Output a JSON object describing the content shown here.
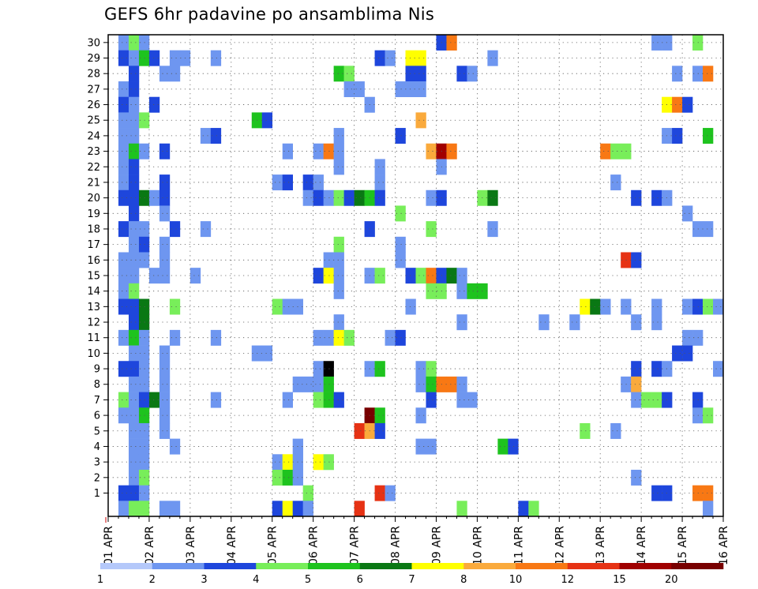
{
  "chart_data": {
    "type": "heatmap",
    "title": "GEFS 6hr padavine po ansamblima Nis",
    "x_tick_labels": [
      "01 APR",
      "02 APR",
      "03 APR",
      "04 APR",
      "05 APR",
      "06 APR",
      "07 APR",
      "08 APR",
      "09 APR",
      "10 APR",
      "11 APR",
      "12 APR",
      "13 APR",
      "14 APR",
      "15 APR",
      "16 APR"
    ],
    "y_tick_labels": [
      "1",
      "2",
      "3",
      "4",
      "5",
      "6",
      "7",
      "8",
      "9",
      "10",
      "11",
      "12",
      "13",
      "14",
      "15",
      "16",
      "17",
      "18",
      "19",
      "20",
      "21",
      "22",
      "23",
      "24",
      "25",
      "26",
      "27",
      "28",
      "29",
      "30"
    ],
    "x_unit": "6-hour step (step 0 = 01 APR 00Z)",
    "y_unit": "ensemble member",
    "xlim": [
      0,
      60
    ],
    "ylim": [
      0,
      30
    ],
    "grid": true,
    "colorbar": {
      "colors": [
        "#b4c8fa",
        "#6e96f0",
        "#1e46dc",
        "#78ee5a",
        "#1ec31e",
        "#0a7814",
        "#ffff00",
        "#faaa3c",
        "#f87814",
        "#e63214",
        "#a00000",
        "#780000"
      ],
      "labels": [
        "1",
        "2",
        "3",
        "4",
        "5",
        "6",
        "7",
        "8",
        "10",
        "12",
        "15",
        "20"
      ]
    },
    "cells": [
      [
        1,
        30,
        1
      ],
      [
        2,
        30,
        3
      ],
      [
        3,
        30,
        1
      ],
      [
        32,
        30,
        2
      ],
      [
        33,
        30,
        8
      ],
      [
        53,
        30,
        1
      ],
      [
        54,
        30,
        1
      ],
      [
        57,
        30,
        3
      ],
      [
        1,
        29,
        2
      ],
      [
        2,
        29,
        1
      ],
      [
        3,
        29,
        4
      ],
      [
        4,
        29,
        2
      ],
      [
        6,
        29,
        1
      ],
      [
        7,
        29,
        1
      ],
      [
        10,
        29,
        1
      ],
      [
        26,
        29,
        2
      ],
      [
        27,
        29,
        1
      ],
      [
        29,
        29,
        6
      ],
      [
        30,
        29,
        6
      ],
      [
        37,
        29,
        1
      ],
      [
        2,
        28,
        2
      ],
      [
        5,
        28,
        1
      ],
      [
        6,
        28,
        1
      ],
      [
        22,
        28,
        4
      ],
      [
        23,
        28,
        3
      ],
      [
        29,
        28,
        2
      ],
      [
        30,
        28,
        2
      ],
      [
        34,
        28,
        2
      ],
      [
        35,
        28,
        1
      ],
      [
        55,
        28,
        1
      ],
      [
        57,
        28,
        1
      ],
      [
        58,
        28,
        8
      ],
      [
        1,
        27,
        1
      ],
      [
        2,
        27,
        2
      ],
      [
        23,
        27,
        1
      ],
      [
        24,
        27,
        1
      ],
      [
        28,
        27,
        1
      ],
      [
        29,
        27,
        1
      ],
      [
        30,
        27,
        1
      ],
      [
        1,
        26,
        2
      ],
      [
        2,
        26,
        1
      ],
      [
        4,
        26,
        2
      ],
      [
        25,
        26,
        1
      ],
      [
        54,
        26,
        6
      ],
      [
        55,
        26,
        8
      ],
      [
        56,
        26,
        2
      ],
      [
        1,
        25,
        1
      ],
      [
        2,
        25,
        1
      ],
      [
        3,
        25,
        3
      ],
      [
        14,
        25,
        4
      ],
      [
        15,
        25,
        2
      ],
      [
        30,
        25,
        7
      ],
      [
        1,
        24,
        1
      ],
      [
        2,
        24,
        1
      ],
      [
        9,
        24,
        1
      ],
      [
        10,
        24,
        2
      ],
      [
        22,
        24,
        1
      ],
      [
        28,
        24,
        2
      ],
      [
        54,
        24,
        1
      ],
      [
        55,
        24,
        2
      ],
      [
        58,
        24,
        4
      ],
      [
        1,
        23,
        1
      ],
      [
        2,
        23,
        4
      ],
      [
        3,
        23,
        1
      ],
      [
        5,
        23,
        2
      ],
      [
        17,
        23,
        1
      ],
      [
        20,
        23,
        1
      ],
      [
        21,
        23,
        8
      ],
      [
        22,
        23,
        1
      ],
      [
        31,
        23,
        7
      ],
      [
        32,
        23,
        10
      ],
      [
        33,
        23,
        8
      ],
      [
        48,
        23,
        8
      ],
      [
        49,
        23,
        3
      ],
      [
        50,
        23,
        3
      ],
      [
        1,
        22,
        1
      ],
      [
        2,
        22,
        2
      ],
      [
        22,
        22,
        1
      ],
      [
        26,
        22,
        1
      ],
      [
        32,
        22,
        1
      ],
      [
        1,
        21,
        1
      ],
      [
        2,
        21,
        2
      ],
      [
        5,
        21,
        2
      ],
      [
        16,
        21,
        1
      ],
      [
        17,
        21,
        2
      ],
      [
        19,
        21,
        2
      ],
      [
        20,
        21,
        1
      ],
      [
        26,
        21,
        1
      ],
      [
        49,
        21,
        1
      ],
      [
        1,
        20,
        2
      ],
      [
        2,
        20,
        2
      ],
      [
        3,
        20,
        5
      ],
      [
        4,
        20,
        1
      ],
      [
        5,
        20,
        2
      ],
      [
        19,
        20,
        1
      ],
      [
        20,
        20,
        2
      ],
      [
        21,
        20,
        1
      ],
      [
        22,
        20,
        3
      ],
      [
        23,
        20,
        2
      ],
      [
        24,
        20,
        5
      ],
      [
        25,
        20,
        4
      ],
      [
        26,
        20,
        2
      ],
      [
        31,
        20,
        1
      ],
      [
        32,
        20,
        2
      ],
      [
        36,
        20,
        3
      ],
      [
        37,
        20,
        5
      ],
      [
        51,
        20,
        2
      ],
      [
        53,
        20,
        2
      ],
      [
        54,
        20,
        1
      ],
      [
        2,
        19,
        2
      ],
      [
        5,
        19,
        1
      ],
      [
        28,
        19,
        3
      ],
      [
        56,
        19,
        1
      ],
      [
        1,
        18,
        2
      ],
      [
        2,
        18,
        1
      ],
      [
        3,
        18,
        1
      ],
      [
        6,
        18,
        2
      ],
      [
        9,
        18,
        1
      ],
      [
        25,
        18,
        2
      ],
      [
        31,
        18,
        3
      ],
      [
        37,
        18,
        1
      ],
      [
        57,
        18,
        1
      ],
      [
        58,
        18,
        1
      ],
      [
        2,
        17,
        1
      ],
      [
        3,
        17,
        2
      ],
      [
        5,
        17,
        1
      ],
      [
        22,
        17,
        3
      ],
      [
        28,
        17,
        1
      ],
      [
        1,
        16,
        1
      ],
      [
        2,
        16,
        1
      ],
      [
        3,
        16,
        1
      ],
      [
        5,
        16,
        1
      ],
      [
        21,
        16,
        1
      ],
      [
        22,
        16,
        1
      ],
      [
        28,
        16,
        1
      ],
      [
        50,
        16,
        9
      ],
      [
        51,
        16,
        2
      ],
      [
        1,
        15,
        1
      ],
      [
        2,
        15,
        1
      ],
      [
        4,
        15,
        1
      ],
      [
        5,
        15,
        1
      ],
      [
        8,
        15,
        1
      ],
      [
        20,
        15,
        2
      ],
      [
        21,
        15,
        6
      ],
      [
        22,
        15,
        1
      ],
      [
        25,
        15,
        1
      ],
      [
        26,
        15,
        3
      ],
      [
        29,
        15,
        2
      ],
      [
        30,
        15,
        3
      ],
      [
        31,
        15,
        8
      ],
      [
        32,
        15,
        2
      ],
      [
        33,
        15,
        5
      ],
      [
        34,
        15,
        1
      ],
      [
        1,
        14,
        1
      ],
      [
        2,
        14,
        3
      ],
      [
        22,
        14,
        1
      ],
      [
        31,
        14,
        3
      ],
      [
        32,
        14,
        3
      ],
      [
        34,
        14,
        1
      ],
      [
        35,
        14,
        4
      ],
      [
        36,
        14,
        4
      ],
      [
        1,
        13,
        2
      ],
      [
        2,
        13,
        2
      ],
      [
        3,
        13,
        5
      ],
      [
        6,
        13,
        3
      ],
      [
        16,
        13,
        3
      ],
      [
        17,
        13,
        1
      ],
      [
        18,
        13,
        1
      ],
      [
        29,
        13,
        1
      ],
      [
        46,
        13,
        6
      ],
      [
        47,
        13,
        5
      ],
      [
        48,
        13,
        1
      ],
      [
        50,
        13,
        1
      ],
      [
        53,
        13,
        1
      ],
      [
        56,
        13,
        1
      ],
      [
        57,
        13,
        2
      ],
      [
        58,
        13,
        3
      ],
      [
        59,
        13,
        1
      ],
      [
        2,
        12,
        2
      ],
      [
        3,
        12,
        5
      ],
      [
        22,
        12,
        1
      ],
      [
        34,
        12,
        1
      ],
      [
        42,
        12,
        1
      ],
      [
        45,
        12,
        1
      ],
      [
        51,
        12,
        1
      ],
      [
        53,
        12,
        1
      ],
      [
        1,
        11,
        1
      ],
      [
        2,
        11,
        4
      ],
      [
        3,
        11,
        1
      ],
      [
        6,
        11,
        1
      ],
      [
        10,
        11,
        1
      ],
      [
        20,
        11,
        1
      ],
      [
        21,
        11,
        1
      ],
      [
        22,
        11,
        6
      ],
      [
        23,
        11,
        3
      ],
      [
        27,
        11,
        1
      ],
      [
        28,
        11,
        2
      ],
      [
        56,
        11,
        1
      ],
      [
        57,
        11,
        1
      ],
      [
        2,
        10,
        1
      ],
      [
        3,
        10,
        1
      ],
      [
        5,
        10,
        1
      ],
      [
        14,
        10,
        1
      ],
      [
        15,
        10,
        1
      ],
      [
        55,
        10,
        2
      ],
      [
        56,
        10,
        2
      ],
      [
        1,
        9,
        2
      ],
      [
        2,
        9,
        2
      ],
      [
        3,
        9,
        1
      ],
      [
        5,
        9,
        1
      ],
      [
        20,
        9,
        1
      ],
      [
        21,
        9,
        12
      ],
      [
        25,
        9,
        1
      ],
      [
        26,
        9,
        4
      ],
      [
        30,
        9,
        1
      ],
      [
        31,
        9,
        3
      ],
      [
        51,
        9,
        2
      ],
      [
        53,
        9,
        2
      ],
      [
        54,
        9,
        1
      ],
      [
        59,
        9,
        1
      ],
      [
        2,
        8,
        1
      ],
      [
        3,
        8,
        1
      ],
      [
        5,
        8,
        1
      ],
      [
        18,
        8,
        1
      ],
      [
        19,
        8,
        1
      ],
      [
        20,
        8,
        1
      ],
      [
        21,
        8,
        4
      ],
      [
        30,
        8,
        1
      ],
      [
        31,
        8,
        4
      ],
      [
        32,
        8,
        8
      ],
      [
        33,
        8,
        8
      ],
      [
        34,
        8,
        1
      ],
      [
        50,
        8,
        1
      ],
      [
        51,
        8,
        7
      ],
      [
        1,
        7,
        3
      ],
      [
        2,
        7,
        1
      ],
      [
        3,
        7,
        2
      ],
      [
        4,
        7,
        5
      ],
      [
        5,
        7,
        1
      ],
      [
        10,
        7,
        1
      ],
      [
        17,
        7,
        1
      ],
      [
        20,
        7,
        3
      ],
      [
        21,
        7,
        4
      ],
      [
        22,
        7,
        2
      ],
      [
        31,
        7,
        2
      ],
      [
        34,
        7,
        1
      ],
      [
        35,
        7,
        1
      ],
      [
        51,
        7,
        1
      ],
      [
        52,
        7,
        3
      ],
      [
        53,
        7,
        3
      ],
      [
        54,
        7,
        2
      ],
      [
        57,
        7,
        2
      ],
      [
        1,
        6,
        1
      ],
      [
        2,
        6,
        1
      ],
      [
        3,
        6,
        4
      ],
      [
        5,
        6,
        1
      ],
      [
        25,
        6,
        11
      ],
      [
        26,
        6,
        4
      ],
      [
        30,
        6,
        1
      ],
      [
        57,
        6,
        1
      ],
      [
        58,
        6,
        3
      ],
      [
        2,
        5,
        1
      ],
      [
        3,
        5,
        1
      ],
      [
        5,
        5,
        1
      ],
      [
        24,
        5,
        9
      ],
      [
        25,
        5,
        7
      ],
      [
        26,
        5,
        2
      ],
      [
        46,
        5,
        3
      ],
      [
        49,
        5,
        1
      ],
      [
        2,
        4,
        1
      ],
      [
        3,
        4,
        1
      ],
      [
        6,
        4,
        1
      ],
      [
        18,
        4,
        1
      ],
      [
        30,
        4,
        1
      ],
      [
        31,
        4,
        1
      ],
      [
        38,
        4,
        4
      ],
      [
        39,
        4,
        2
      ],
      [
        2,
        3,
        1
      ],
      [
        3,
        3,
        1
      ],
      [
        16,
        3,
        1
      ],
      [
        17,
        3,
        6
      ],
      [
        18,
        3,
        1
      ],
      [
        20,
        3,
        6
      ],
      [
        21,
        3,
        3
      ],
      [
        2,
        2,
        1
      ],
      [
        3,
        2,
        3
      ],
      [
        16,
        2,
        3
      ],
      [
        17,
        2,
        4
      ],
      [
        18,
        2,
        1
      ],
      [
        51,
        2,
        1
      ],
      [
        1,
        1,
        2
      ],
      [
        2,
        1,
        2
      ],
      [
        3,
        1,
        1
      ],
      [
        19,
        1,
        3
      ],
      [
        26,
        1,
        9
      ],
      [
        27,
        1,
        1
      ],
      [
        53,
        1,
        2
      ],
      [
        54,
        1,
        2
      ],
      [
        57,
        1,
        8
      ],
      [
        58,
        1,
        8
      ],
      [
        1,
        0,
        1
      ],
      [
        2,
        0,
        3
      ],
      [
        3,
        0,
        3
      ],
      [
        5,
        0,
        1
      ],
      [
        6,
        0,
        1
      ],
      [
        16,
        0,
        2
      ],
      [
        17,
        0,
        6
      ],
      [
        18,
        0,
        2
      ],
      [
        19,
        0,
        1
      ],
      [
        24,
        0,
        9
      ],
      [
        34,
        0,
        3
      ],
      [
        40,
        0,
        2
      ],
      [
        41,
        0,
        3
      ],
      [
        58,
        0,
        1
      ]
    ]
  }
}
